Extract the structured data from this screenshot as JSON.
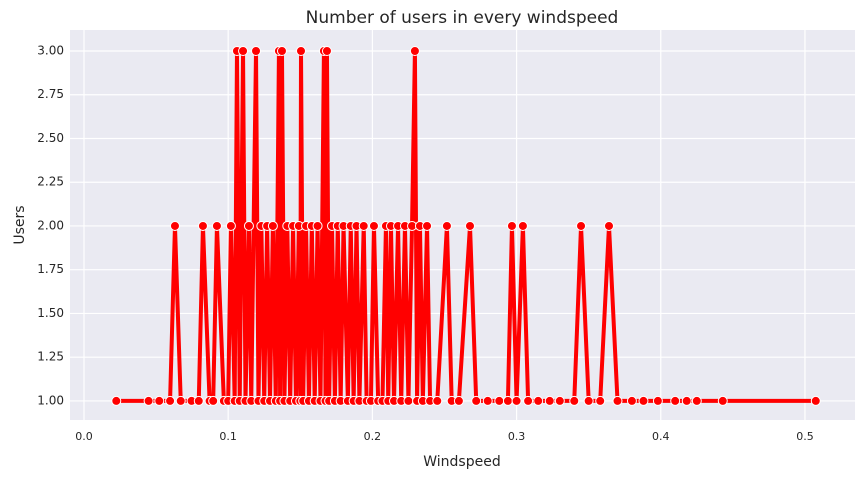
{
  "chart_data": {
    "type": "line",
    "title": "Number of users in every windspeed",
    "x_label": "Windspeed",
    "y_label": "Users",
    "x": [
      0.0224,
      0.0448,
      0.0522,
      0.0597,
      0.0631,
      0.0671,
      0.0746,
      0.0796,
      0.0825,
      0.0871,
      0.0896,
      0.0922,
      0.097,
      0.1,
      0.1019,
      0.1045,
      0.1061,
      0.108,
      0.1103,
      0.112,
      0.1144,
      0.116,
      0.1193,
      0.121,
      0.123,
      0.125,
      0.127,
      0.129,
      0.131,
      0.133,
      0.1352,
      0.136,
      0.1373,
      0.139,
      0.141,
      0.143,
      0.145,
      0.147,
      0.149,
      0.15,
      0.1505,
      0.152,
      0.154,
      0.156,
      0.158,
      0.16,
      0.162,
      0.164,
      0.1664,
      0.1675,
      0.1685,
      0.17,
      0.172,
      0.174,
      0.176,
      0.178,
      0.18,
      0.183,
      0.185,
      0.187,
      0.189,
      0.191,
      0.194,
      0.196,
      0.199,
      0.2011,
      0.204,
      0.207,
      0.2094,
      0.211,
      0.2129,
      0.215,
      0.2178,
      0.22,
      0.2226,
      0.225,
      0.2275,
      0.2295,
      0.231,
      0.233,
      0.235,
      0.2379,
      0.24,
      0.245,
      0.2517,
      0.255,
      0.26,
      0.2677,
      0.272,
      0.28,
      0.288,
      0.294,
      0.2968,
      0.3,
      0.3044,
      0.308,
      0.315,
      0.323,
      0.33,
      0.34,
      0.3447,
      0.35,
      0.358,
      0.3641,
      0.37,
      0.38,
      0.388,
      0.398,
      0.41,
      0.418,
      0.425,
      0.443,
      0.5075
    ],
    "values": [
      1,
      1,
      1,
      1,
      2,
      1,
      1,
      1,
      2,
      1,
      1,
      2,
      1,
      1,
      2,
      1,
      3,
      1,
      3,
      1,
      2,
      1,
      3,
      1,
      2,
      1,
      2,
      1,
      2,
      1,
      3,
      1,
      3,
      1,
      2,
      1,
      2,
      1,
      2,
      1,
      3,
      1,
      2,
      1,
      2,
      1,
      2,
      1,
      3,
      1,
      3,
      1,
      2,
      1,
      2,
      1,
      2,
      1,
      2,
      1,
      2,
      1,
      2,
      1,
      1,
      2,
      1,
      1,
      2,
      1,
      2,
      1,
      2,
      1,
      2,
      1,
      2,
      3,
      1,
      2,
      1,
      2,
      1,
      1,
      2,
      1,
      1,
      2,
      1,
      1,
      1,
      1,
      2,
      1,
      2,
      1,
      1,
      1,
      1,
      1,
      2,
      1,
      1,
      2,
      1,
      1,
      1,
      1,
      1,
      1,
      1,
      1,
      1
    ],
    "color": "#ff0000",
    "xlim": [
      -0.0097,
      0.5347
    ],
    "xticks": [
      {
        "value": 0,
        "label": "0.0"
      },
      0.1,
      0.2,
      0.3,
      0.4,
      0.5
    ],
    "ylim": [
      0.891,
      3.12
    ],
    "yticks": [
      {
        "value": 1,
        "label": "1.00"
      },
      {
        "value": 1.25,
        "label": "1.25"
      },
      {
        "value": 1.5,
        "label": "1.50"
      },
      {
        "value": 1.75,
        "label": "1.75"
      },
      {
        "value": 2,
        "label": "2.00"
      },
      {
        "value": 2.25,
        "label": "2.25"
      },
      {
        "value": 2.5,
        "label": "2.50"
      },
      {
        "value": 2.75,
        "label": "2.75"
      },
      {
        "value": 3,
        "label": "3.00"
      }
    ],
    "grid": true
  }
}
